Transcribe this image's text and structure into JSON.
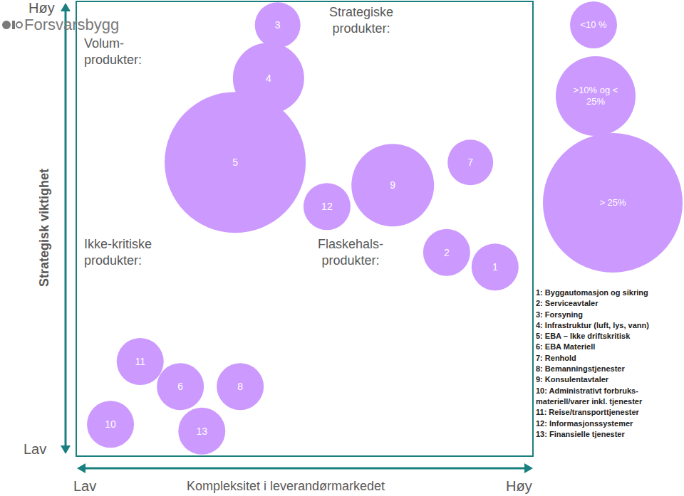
{
  "logo": "Forsvarsbygg",
  "chart_data": {
    "type": "bubble",
    "x_label": "Kompleksitet i leverandørmarkedet",
    "y_label": "Strategisk viktighet",
    "x_end_labels": [
      "Lav",
      "Høy"
    ],
    "y_end_labels": [
      "Lav",
      "Høy"
    ],
    "xlim": [
      0,
      100
    ],
    "ylim": [
      0,
      100
    ],
    "xticks": [
      50
    ],
    "yticks": [
      50
    ],
    "tick_labels": false,
    "grid": true,
    "color": "#cc99ff",
    "quadrants": [
      "Volum-produkter:",
      "Strategiske produkter:",
      "Ikke-kritiske produkter:",
      "Flaskehals-produkter:"
    ],
    "points": [
      {
        "label": "1",
        "x": 91.7,
        "y": 41.6,
        "size": 33
      },
      {
        "label": "2",
        "x": 81.1,
        "y": 44.8,
        "size": 33
      },
      {
        "label": "3",
        "x": 44.1,
        "y": 94.8,
        "size": 32
      },
      {
        "label": "4",
        "x": 42.1,
        "y": 83.1,
        "size": 50
      },
      {
        "label": "5",
        "x": 34.8,
        "y": 64.6,
        "size": 99
      },
      {
        "label": "6",
        "x": 22.8,
        "y": 15.3,
        "size": 33
      },
      {
        "label": "7",
        "x": 86.3,
        "y": 64.6,
        "size": 32
      },
      {
        "label": "8",
        "x": 35.9,
        "y": 15.3,
        "size": 33
      },
      {
        "label": "9",
        "x": 69.3,
        "y": 59.6,
        "size": 58
      },
      {
        "label": "10",
        "x": 7.5,
        "y": 7.0,
        "size": 33
      },
      {
        "label": "11",
        "x": 14.0,
        "y": 20.8,
        "size": 33
      },
      {
        "label": "12",
        "x": 54.9,
        "y": 54.9,
        "size": 33
      },
      {
        "label": "13",
        "x": 27.5,
        "y": 5.5,
        "size": 33
      }
    ],
    "descriptions": [
      "1: Byggautomasjon og sikring",
      "2: Serviceavtaler",
      "3: Forsyning",
      "4: Infrastruktur (luft, lys, vann)",
      "5: EBA – Ikke driftskritisk",
      "6: EBA Materiell",
      "7: Renhold",
      "8: Bemanningstjenester",
      "9: Konsulentavtaler",
      "10: Administrativt forbruks-materiell/varer inkl. tjenester",
      "11: Reise/transporttjenester",
      "12: Informasjonssystemer",
      "13: Finansielle tjenester"
    ],
    "size_legend": [
      {
        "label": "<10 %",
        "size": 33
      },
      {
        "label": ">10% og < 25%",
        "size": 56
      },
      {
        "label": "> 25%",
        "size": 98
      }
    ]
  }
}
